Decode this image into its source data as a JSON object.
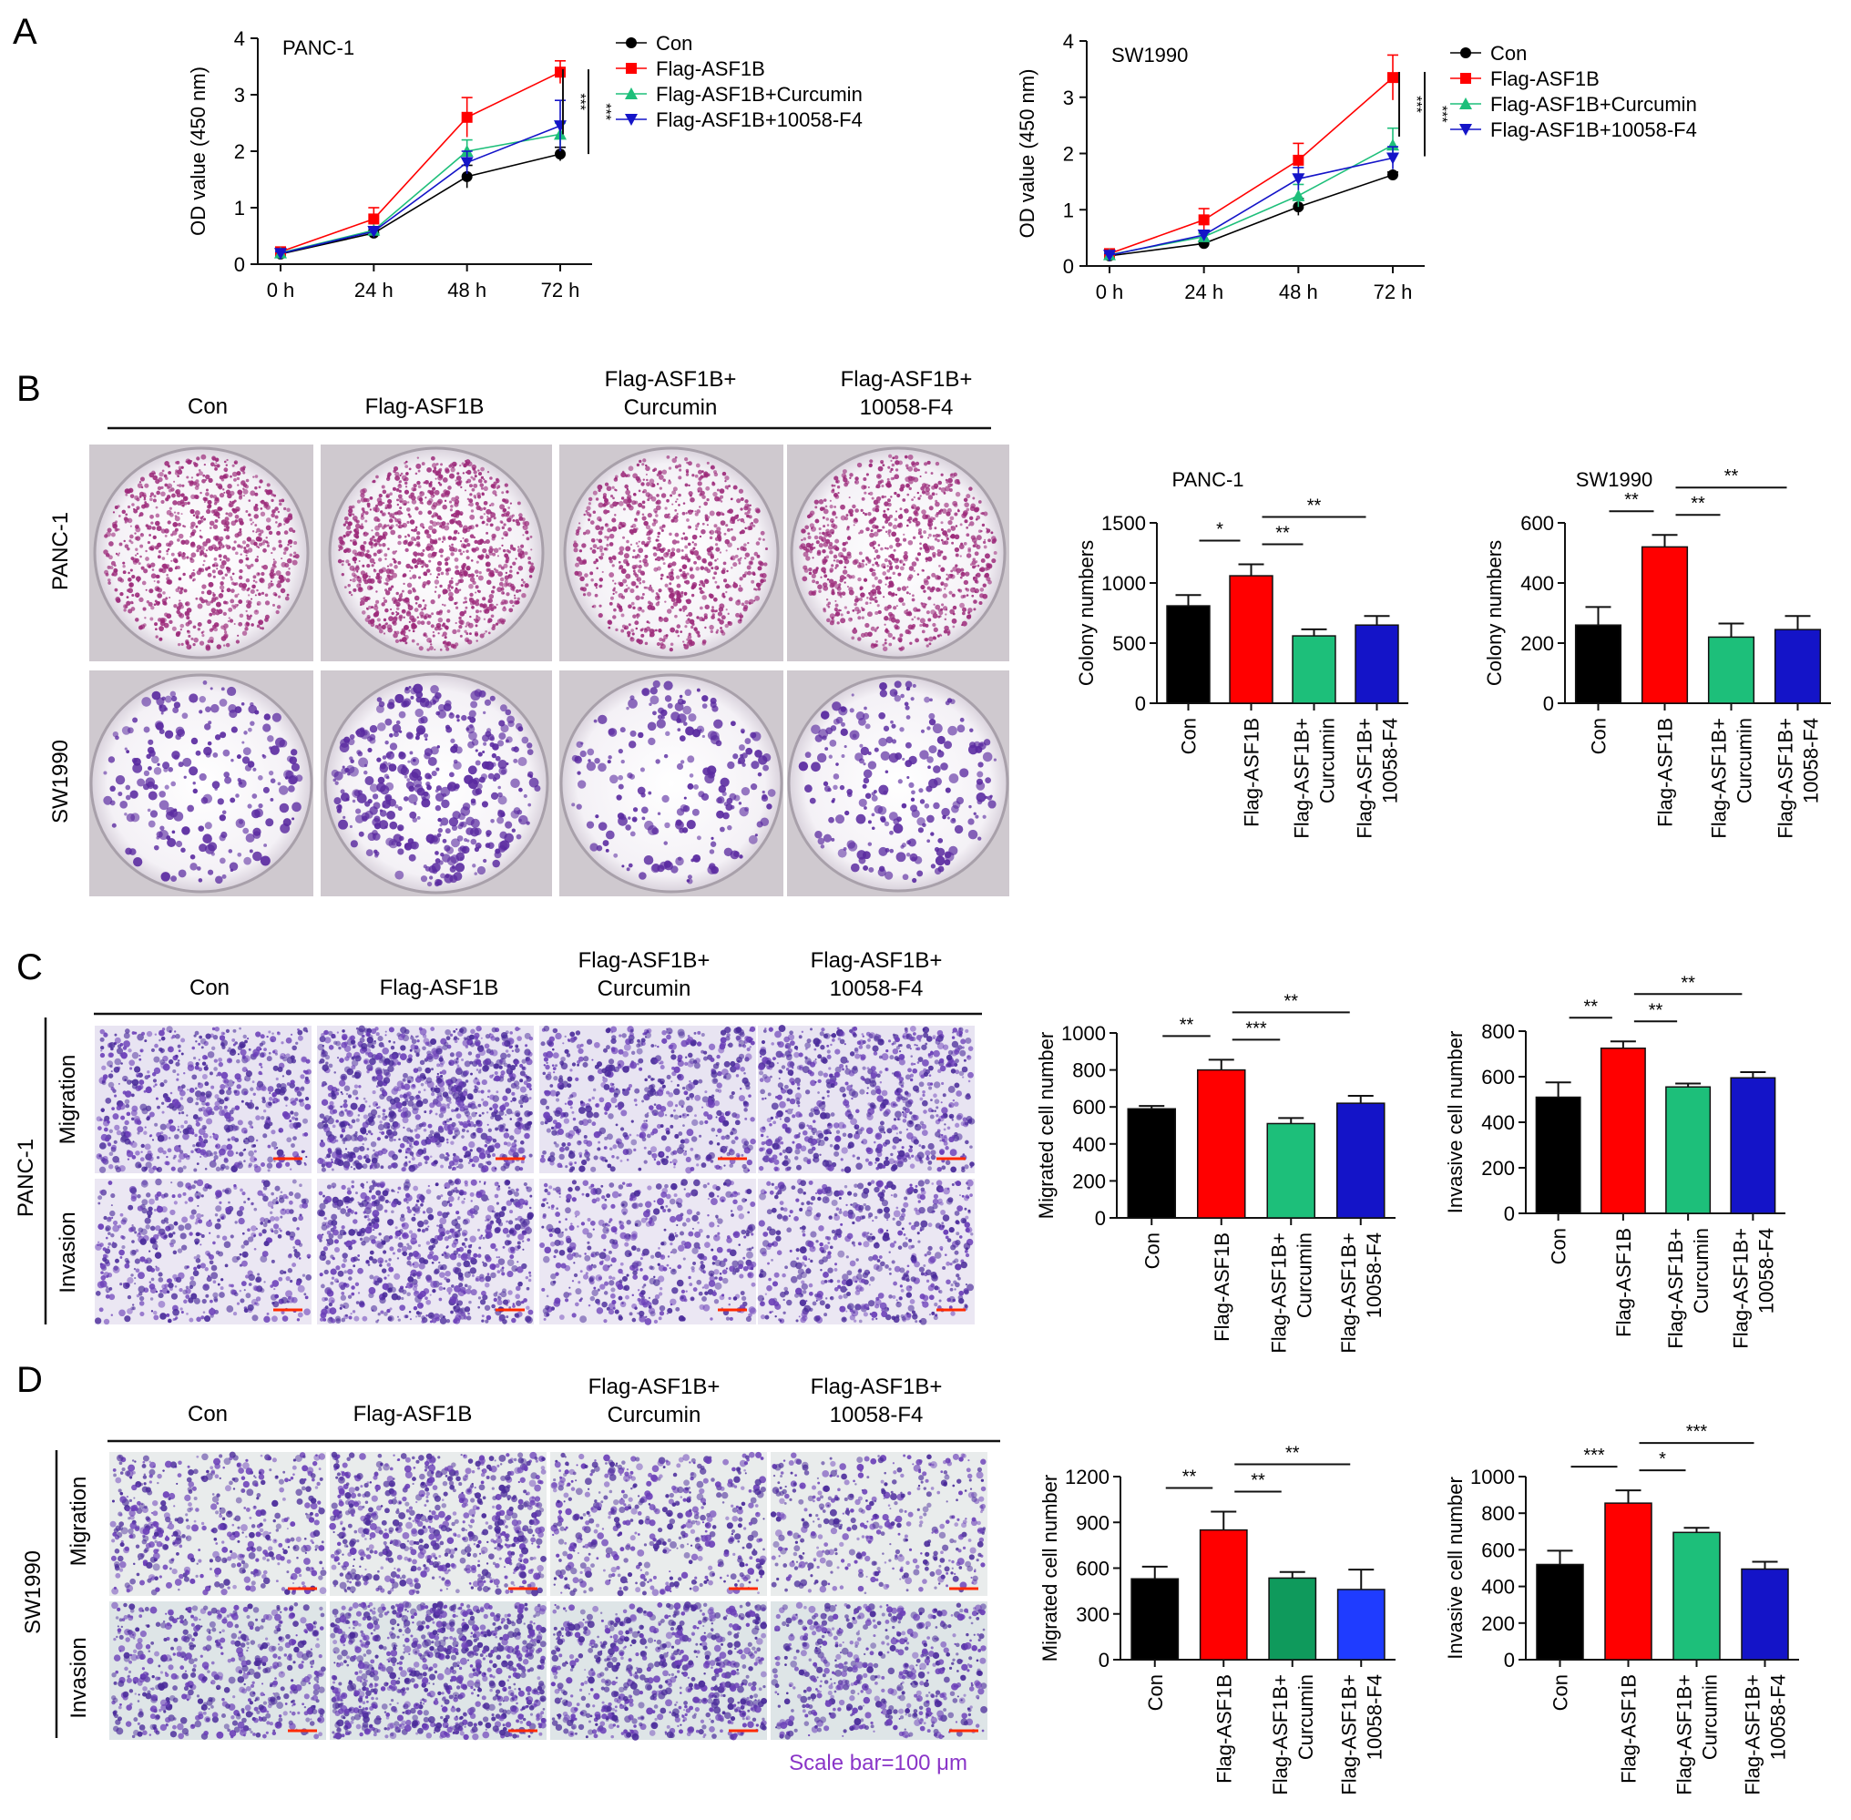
{
  "panels": {
    "A": {
      "letter": "A"
    },
    "B": {
      "letter": "B",
      "columns": [
        "Con",
        "Flag-ASF1B",
        "Flag-ASF1B+\nCurcumin",
        "Flag-ASF1B+\n10058-F4"
      ],
      "rows": [
        "PANC-1",
        "SW1990"
      ]
    },
    "C": {
      "letter": "C",
      "columns": [
        "Con",
        "Flag-ASF1B",
        "Flag-ASF1B+\nCurcumin",
        "Flag-ASF1B+\n10058-F4"
      ],
      "cell_line": "PANC-1",
      "rows": [
        "Migration",
        "Invasion"
      ]
    },
    "D": {
      "letter": "D",
      "columns": [
        "Con",
        "Flag-ASF1B",
        "Flag-ASF1B+\nCurcumin",
        "Flag-ASF1B+\n10058-F4"
      ],
      "cell_line": "SW1990",
      "rows": [
        "Migration",
        "Invasion"
      ],
      "scale_bar": "Scale bar=100 μm"
    }
  },
  "legend": [
    "Con",
    "Flag-ASF1B",
    "Flag-ASF1B+Curcumin",
    "Flag-ASF1B+10058-F4"
  ],
  "colors": {
    "con": "#000000",
    "asf1b": "#ff0000",
    "curcumin": "#1dbf7a",
    "f4": "#1414c8",
    "curcumin_d1": "#0f9a5c",
    "f4_d1": "#1f3cff",
    "stain_purple": "#5a2aa0",
    "stain_magenta": "#9c2a7a",
    "scale_bar_red": "#ff2a00",
    "scale_text": "#8a35c8"
  },
  "chart_data": [
    {
      "id": "A-PANC-1",
      "type": "line",
      "title": "PANC-1",
      "xlabel": "",
      "ylabel": "OD value (450 nm)",
      "categories": [
        "0 h",
        "24 h",
        "48 h",
        "72 h"
      ],
      "ylim": [
        0,
        4
      ],
      "yticks": [
        0,
        1,
        2,
        3,
        4
      ],
      "series": [
        {
          "name": "Con",
          "values": [
            0.18,
            0.55,
            1.55,
            1.95
          ],
          "err": [
            0.03,
            0.05,
            0.2,
            0.12
          ]
        },
        {
          "name": "Flag-ASF1B",
          "values": [
            0.22,
            0.8,
            2.6,
            3.4
          ],
          "err": [
            0.03,
            0.2,
            0.35,
            0.2
          ]
        },
        {
          "name": "Flag-ASF1B+Curcumin",
          "values": [
            0.2,
            0.6,
            2.0,
            2.3
          ],
          "err": [
            0.03,
            0.05,
            0.2,
            0.2
          ]
        },
        {
          "name": "Flag-ASF1B+10058-F4",
          "values": [
            0.19,
            0.58,
            1.8,
            2.45
          ],
          "err": [
            0.03,
            0.05,
            0.2,
            0.45
          ]
        }
      ],
      "significance": [
        "***",
        "***"
      ]
    },
    {
      "id": "A-SW1990",
      "type": "line",
      "title": "SW1990",
      "xlabel": "",
      "ylabel": "OD value (450 nm)",
      "categories": [
        "0 h",
        "24 h",
        "48 h",
        "72 h"
      ],
      "ylim": [
        0,
        4
      ],
      "yticks": [
        0,
        1,
        2,
        3,
        4
      ],
      "series": [
        {
          "name": "Con",
          "values": [
            0.18,
            0.4,
            1.05,
            1.62
          ],
          "err": [
            0.03,
            0.05,
            0.15,
            0.05
          ]
        },
        {
          "name": "Flag-ASF1B",
          "values": [
            0.22,
            0.82,
            1.88,
            3.35
          ],
          "err": [
            0.03,
            0.2,
            0.3,
            0.4
          ]
        },
        {
          "name": "Flag-ASF1B+Curcumin",
          "values": [
            0.2,
            0.52,
            1.25,
            2.15
          ],
          "err": [
            0.03,
            0.05,
            0.2,
            0.3
          ]
        },
        {
          "name": "Flag-ASF1B+10058-F4",
          "values": [
            0.19,
            0.55,
            1.55,
            1.92
          ],
          "err": [
            0.03,
            0.05,
            0.2,
            0.2
          ]
        }
      ],
      "significance": [
        "***",
        "***"
      ]
    },
    {
      "id": "B-PANC-1",
      "type": "bar",
      "title": "PANC-1",
      "ylabel": "Colony numbers",
      "categories": [
        "Con",
        "Flag-ASF1B",
        "Flag-ASF1B+\nCurcumin",
        "Flag-ASF1B+\n10058-F4"
      ],
      "values": [
        810,
        1060,
        560,
        650
      ],
      "err": [
        90,
        95,
        55,
        75
      ],
      "ylim": [
        0,
        1500
      ],
      "yticks": [
        0,
        500,
        1000,
        1500
      ],
      "significance": [
        {
          "from": 0,
          "to": 1,
          "label": "*"
        },
        {
          "from": 1,
          "to": 2,
          "label": "**"
        },
        {
          "from": 1,
          "to": 3,
          "label": "**"
        }
      ]
    },
    {
      "id": "B-SW1990",
      "type": "bar",
      "title": "SW1990",
      "ylabel": "Colony numbers",
      "categories": [
        "Con",
        "Flag-ASF1B",
        "Flag-ASF1B+\nCurcumin",
        "Flag-ASF1B+\n10058-F4"
      ],
      "values": [
        260,
        520,
        220,
        245
      ],
      "err": [
        60,
        40,
        45,
        45
      ],
      "ylim": [
        0,
        600
      ],
      "yticks": [
        0,
        200,
        400,
        600
      ],
      "significance": [
        {
          "from": 0,
          "to": 1,
          "label": "**"
        },
        {
          "from": 1,
          "to": 2,
          "label": "**"
        },
        {
          "from": 1,
          "to": 3,
          "label": "**"
        }
      ]
    },
    {
      "id": "C-migrated",
      "type": "bar",
      "title": "",
      "ylabel": "Migrated cell number",
      "categories": [
        "Con",
        "Flag-ASF1B",
        "Flag-ASF1B+\nCurcumin",
        "Flag-ASF1B+\n10058-F4"
      ],
      "values": [
        590,
        800,
        510,
        620
      ],
      "err": [
        15,
        55,
        30,
        40
      ],
      "ylim": [
        0,
        1000
      ],
      "yticks": [
        0,
        200,
        400,
        600,
        800,
        1000
      ],
      "significance": [
        {
          "from": 0,
          "to": 1,
          "label": "**"
        },
        {
          "from": 1,
          "to": 2,
          "label": "***"
        },
        {
          "from": 1,
          "to": 3,
          "label": "**"
        }
      ]
    },
    {
      "id": "C-invasive",
      "type": "bar",
      "title": "",
      "ylabel": "Invasive cell number",
      "categories": [
        "Con",
        "Flag-ASF1B",
        "Flag-ASF1B+\nCurcumin",
        "Flag-ASF1B+\n10058-F4"
      ],
      "values": [
        510,
        725,
        555,
        595
      ],
      "err": [
        65,
        30,
        15,
        25
      ],
      "ylim": [
        0,
        800
      ],
      "yticks": [
        0,
        200,
        400,
        600,
        800
      ],
      "significance": [
        {
          "from": 0,
          "to": 1,
          "label": "**"
        },
        {
          "from": 1,
          "to": 2,
          "label": "**"
        },
        {
          "from": 1,
          "to": 3,
          "label": "**"
        }
      ]
    },
    {
      "id": "D-migrated",
      "type": "bar",
      "title": "",
      "ylabel": "Migrated cell number",
      "categories": [
        "Con",
        "Flag-ASF1B",
        "Flag-ASF1B+\nCurcumin",
        "Flag-ASF1B+\n10058-F4"
      ],
      "values": [
        530,
        850,
        535,
        460
      ],
      "err": [
        80,
        120,
        40,
        130
      ],
      "ylim": [
        0,
        1200
      ],
      "yticks": [
        0,
        300,
        600,
        900,
        1200
      ],
      "significance": [
        {
          "from": 0,
          "to": 1,
          "label": "**"
        },
        {
          "from": 1,
          "to": 2,
          "label": "**"
        },
        {
          "from": 1,
          "to": 3,
          "label": "**"
        }
      ]
    },
    {
      "id": "D-invasive",
      "type": "bar",
      "title": "",
      "ylabel": "Invasive cell number",
      "categories": [
        "Con",
        "Flag-ASF1B",
        "Flag-ASF1B+\nCurcumin",
        "Flag-ASF1B+\n10058-F4"
      ],
      "values": [
        520,
        855,
        695,
        495
      ],
      "err": [
        75,
        70,
        25,
        40
      ],
      "ylim": [
        0,
        1000
      ],
      "yticks": [
        0,
        200,
        400,
        600,
        800,
        1000
      ],
      "significance": [
        {
          "from": 0,
          "to": 1,
          "label": "***"
        },
        {
          "from": 1,
          "to": 2,
          "label": "*"
        },
        {
          "from": 1,
          "to": 3,
          "label": "***"
        }
      ]
    }
  ]
}
